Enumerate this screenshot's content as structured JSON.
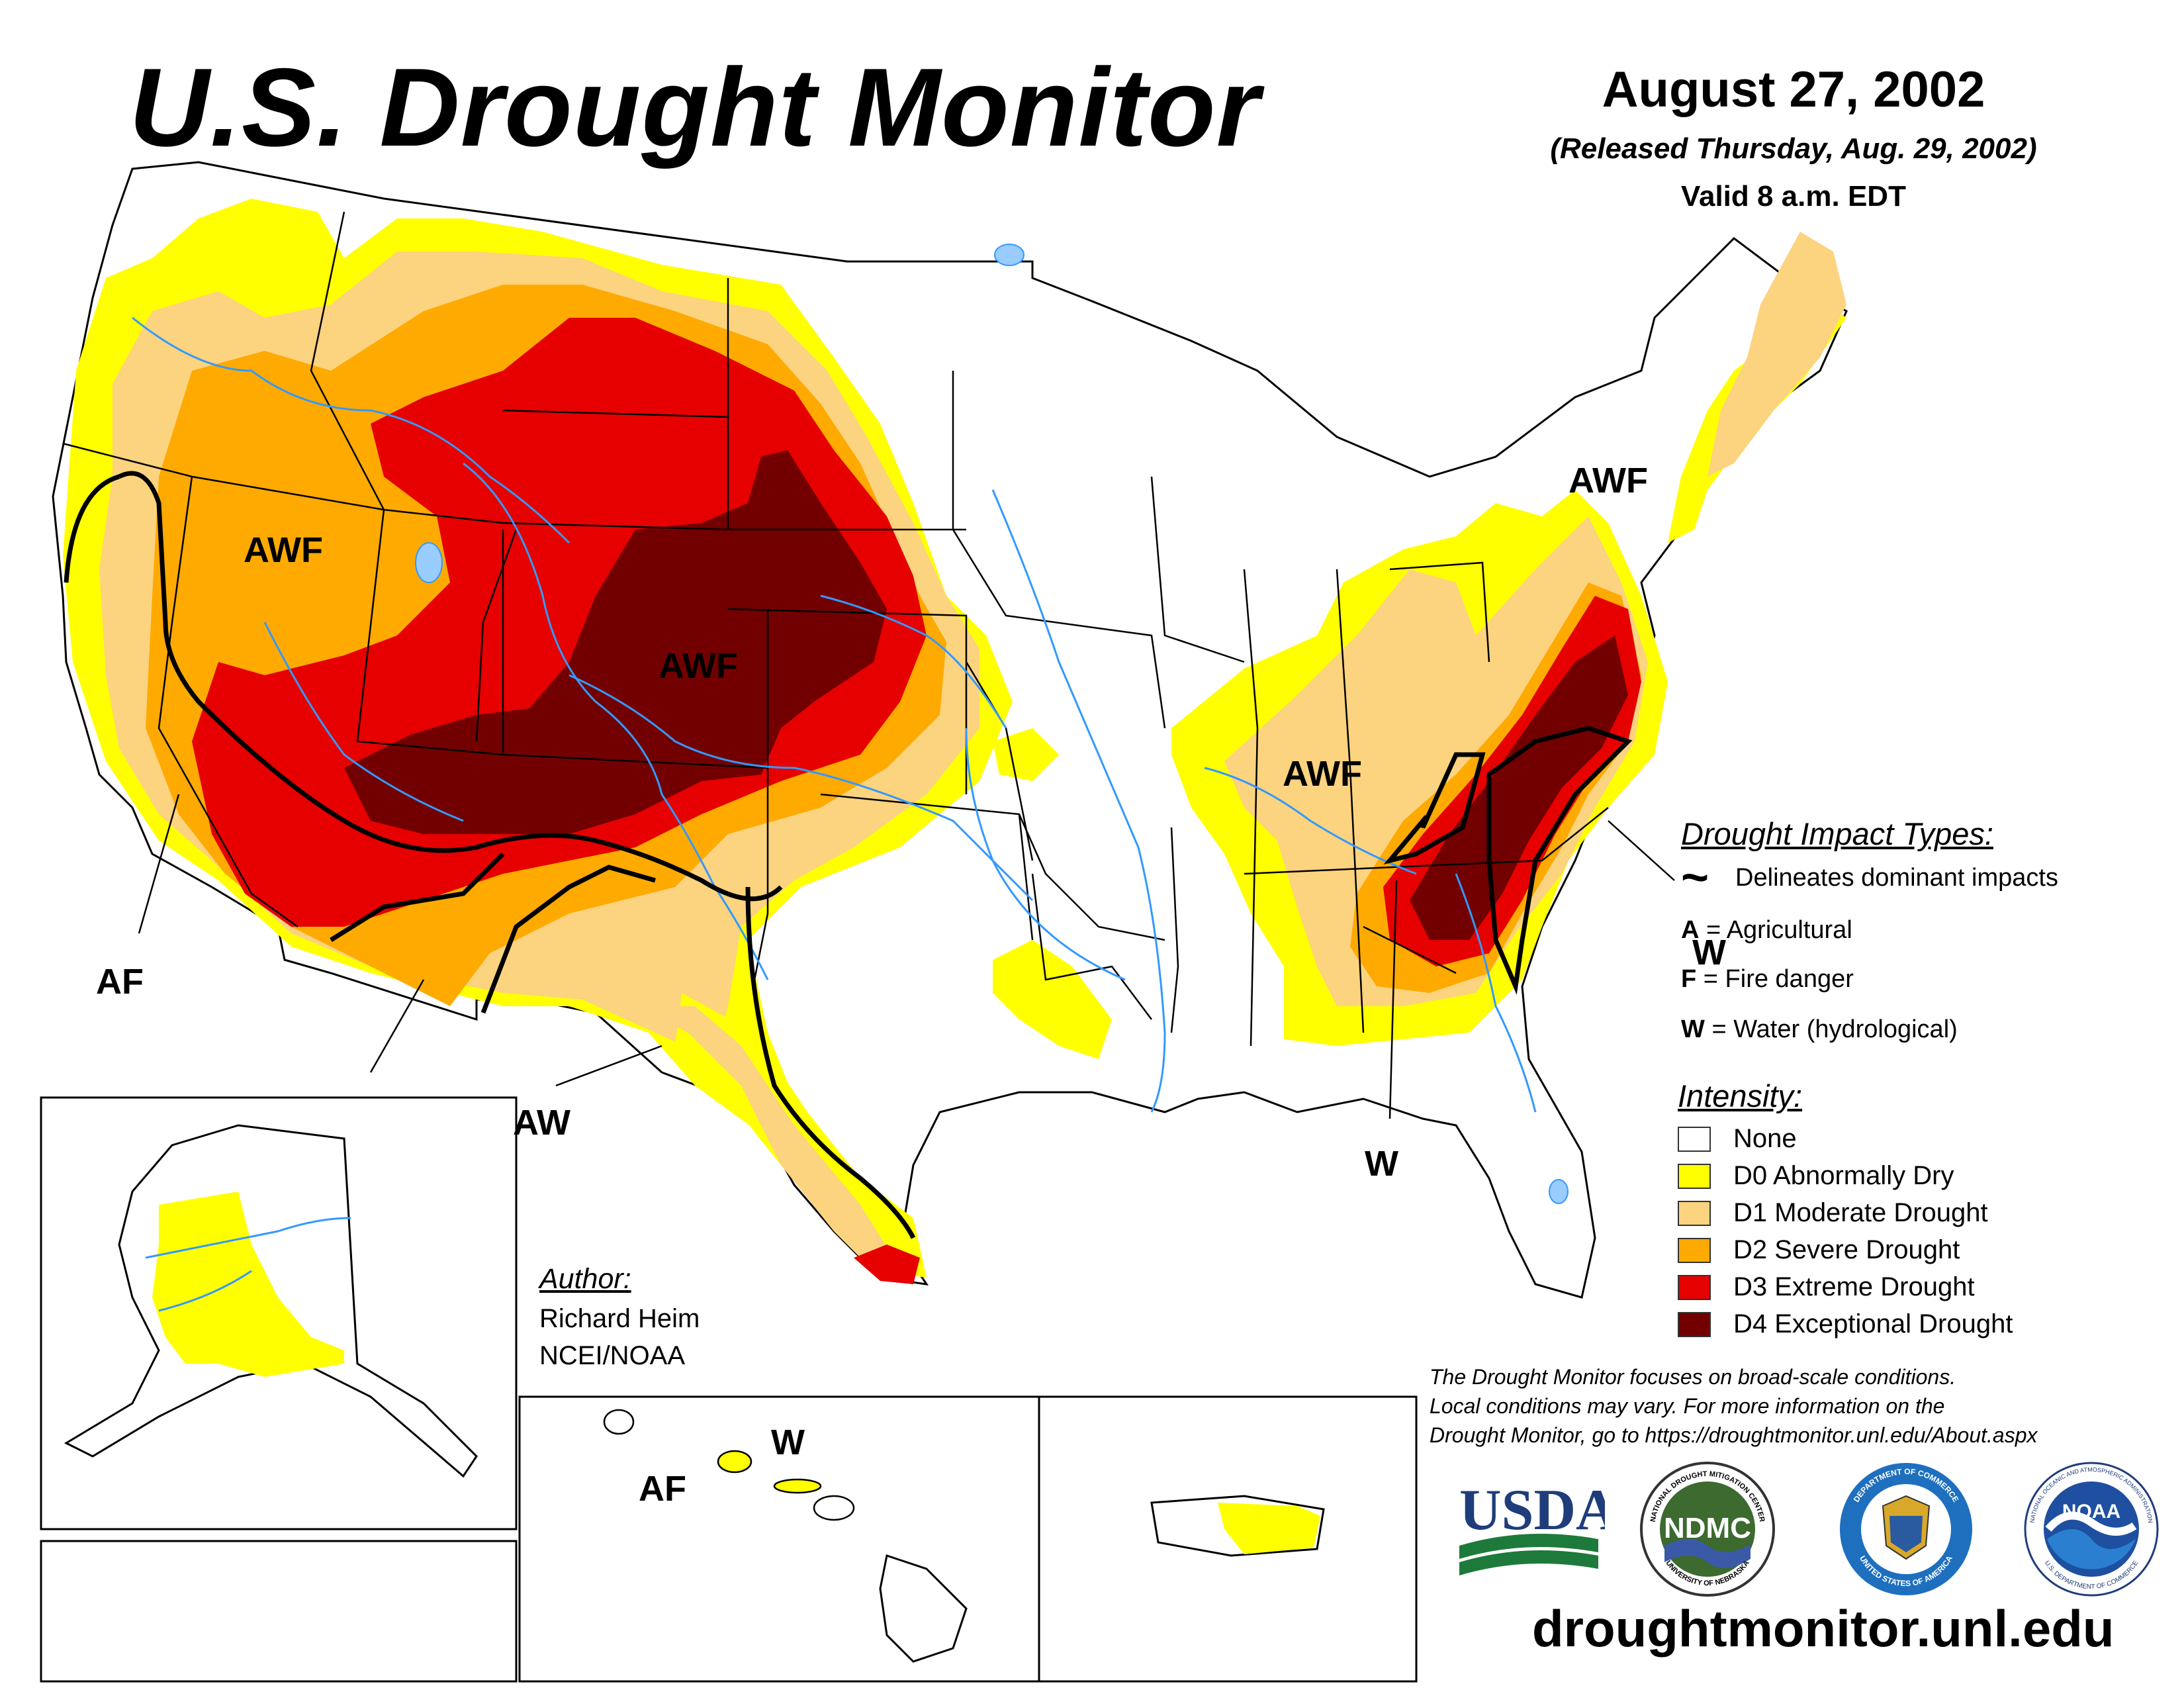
{
  "header": {
    "title": "U.S. Drought Monitor",
    "date": "August 27, 2002",
    "released": "(Released Thursday, Aug. 29, 2002)",
    "valid": "Valid 8 a.m. EDT"
  },
  "impact_legend": {
    "title": "Drought Impact Types:",
    "delineates": "Delineates dominant impacts",
    "items": [
      {
        "key": "A",
        "desc": "Agricultural"
      },
      {
        "key": "F",
        "desc": "Fire danger"
      },
      {
        "key": "W",
        "desc": "Water (hydrological)"
      }
    ],
    "equals": "="
  },
  "intensity_legend": {
    "title": "Intensity:",
    "items": [
      {
        "label": "None",
        "color": "#ffffff"
      },
      {
        "label": "D0 Abnormally Dry",
        "color": "#ffff00"
      },
      {
        "label": "D1 Moderate Drought",
        "color": "#fcd37f"
      },
      {
        "label": "D2 Severe Drought",
        "color": "#ffaa00"
      },
      {
        "label": "D3 Extreme Drought",
        "color": "#e60000"
      },
      {
        "label": "D4 Exceptional Drought",
        "color": "#730000"
      }
    ]
  },
  "map_labels": {
    "awf_west": "AWF",
    "awf_central": "AWF",
    "awf_kentucky": "AWF",
    "awf_northeast": "AWF",
    "af_california": "AF",
    "aw_texas": "AW",
    "w_southeast": "W",
    "w_legend_overlap": "W",
    "af_hawaii": "AF",
    "w_hawaii": "W"
  },
  "author": {
    "title": "Author:",
    "name": "Richard Heim",
    "org": "NCEI/NOAA"
  },
  "disclaimer": [
    "The Drought Monitor focuses on broad-scale conditions.",
    "Local conditions may vary. For more information on the",
    "Drought Monitor, go to https://droughtmonitor.unl.edu/About.aspx"
  ],
  "logos": {
    "usda": "USDA",
    "ndmc": "NDMC",
    "ndmc_ring_top": "NATIONAL DROUGHT MITIGATION CENTER",
    "ndmc_ring_bottom": "UNIVERSITY OF NEBRASKA",
    "commerce_ring_top": "DEPARTMENT OF COMMERCE",
    "commerce_ring_bottom": "UNITED STATES OF AMERICA",
    "noaa": "NOAA",
    "noaa_ring_top": "NATIONAL OCEANIC AND ATMOSPHERIC ADMINISTRATION",
    "noaa_ring_bottom": "U.S. DEPARTMENT OF COMMERCE"
  },
  "url": "droughtmonitor.unl.edu",
  "colors": {
    "d0": "#ffff00",
    "d1": "#fcd37f",
    "d2": "#ffaa00",
    "d3": "#e60000",
    "d4": "#730000",
    "water": "#3399ff",
    "lake": "#99ccff"
  }
}
